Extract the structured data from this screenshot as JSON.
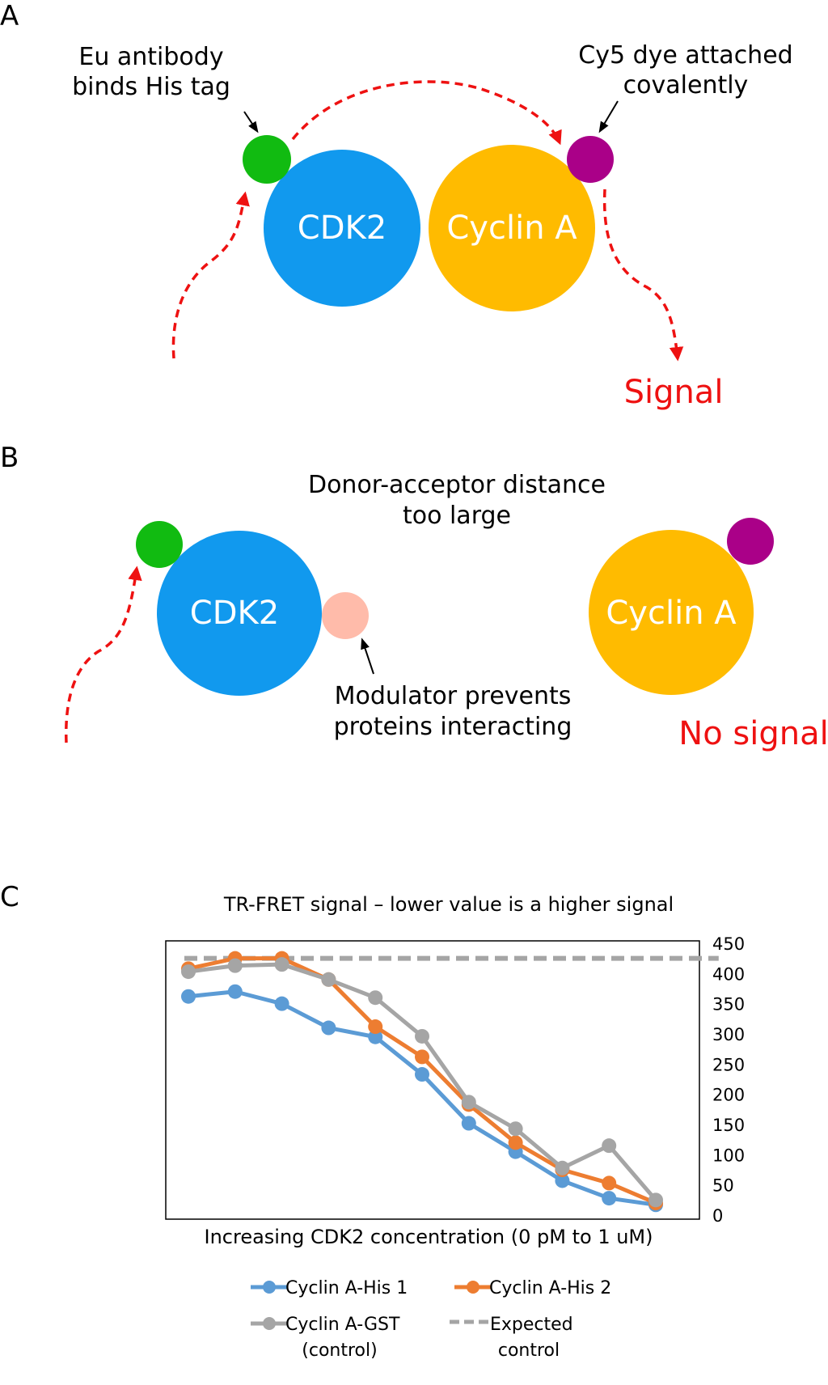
{
  "panels": {
    "a": {
      "letter": "A",
      "donor_note_line1": "Eu antibody",
      "donor_note_line2": "binds His tag",
      "acceptor_note_line1": "Cy5 dye attached",
      "acceptor_note_line2": "covalently",
      "cdk_label": "CDK2",
      "cyclin_label": "Cyclin A",
      "signal_label": "Signal"
    },
    "b": {
      "letter": "B",
      "distance_note_line1": "Donor-acceptor distance",
      "distance_note_line2": "too large",
      "cdk_label": "CDK2",
      "cyclin_label": "Cyclin A",
      "modulator_note_line1": "Modulator prevents",
      "modulator_note_line2": "proteins interacting",
      "no_signal_label": "No signal"
    },
    "c": {
      "letter": "C"
    }
  },
  "colors": {
    "cdk2": "#1199ee",
    "cyclin": "#ffbb00",
    "donor": "#11bb11",
    "acceptor": "#aa0088",
    "modulator": "#ffbbaa",
    "arrow_red": "#ee1111",
    "his1": "#5b9bd5",
    "his2": "#ed7d31",
    "gst": "#a5a5a5",
    "expected": "#a5a5a5"
  },
  "chart_data": {
    "type": "line",
    "title": "TR-FRET signal – lower value is a higher signal",
    "xlabel": "Increasing CDK2 concentration (0 pM to 1 uM)",
    "ylabel": "",
    "ylim": [
      0,
      450
    ],
    "yticks": [
      "450",
      "400",
      "350",
      "300",
      "250",
      "200",
      "150",
      "100",
      "50",
      "0"
    ],
    "y_axis_side": "right",
    "grid": false,
    "legend_position": "bottom",
    "x": [
      1,
      2,
      3,
      4,
      5,
      6,
      7,
      8,
      9,
      10,
      11,
      12
    ],
    "series": [
      {
        "name": "Cyclin A-His 1",
        "color": "#5b9bd5",
        "style": "line-markers",
        "values": [
          362,
          370,
          350,
          310,
          295,
          233,
          152,
          105,
          57,
          28,
          17,
          null
        ]
      },
      {
        "name": "Cyclin A-His 2",
        "color": "#ed7d31",
        "style": "line-markers",
        "values": [
          408,
          425,
          425,
          390,
          312,
          262,
          183,
          120,
          75,
          53,
          20,
          null
        ]
      },
      {
        "name": "Cyclin A-GST",
        "name_line2": "(control)",
        "color": "#a5a5a5",
        "style": "line-markers",
        "values": [
          403,
          413,
          415,
          390,
          360,
          296,
          187,
          143,
          78,
          115,
          25,
          null
        ]
      },
      {
        "name": "Expected",
        "name_line2": "control",
        "color": "#a5a5a5",
        "style": "dashed",
        "values": [
          425,
          425,
          425,
          425,
          425,
          425,
          425,
          425,
          425,
          425,
          425,
          425
        ]
      }
    ]
  }
}
